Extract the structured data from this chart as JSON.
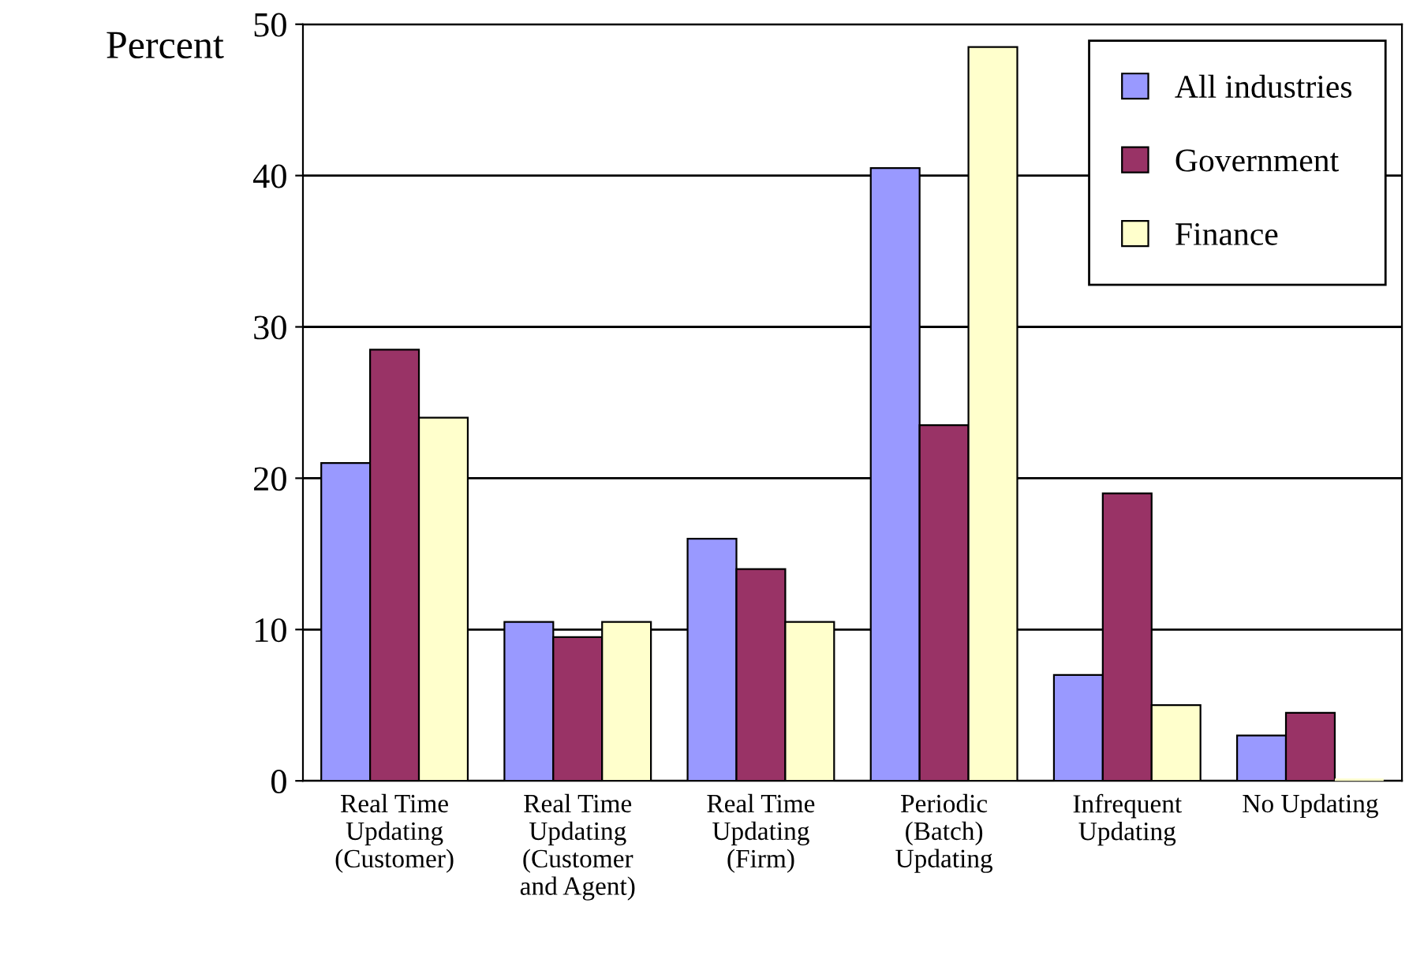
{
  "chart_data": {
    "type": "bar",
    "ylabel": "Percent",
    "categories": [
      "Real Time\nUpdating\n(Customer)",
      "Real Time\nUpdating\n(Customer\nand Agent)",
      "Real Time\nUpdating\n(Firm)",
      "Periodic\n(Batch)\nUpdating",
      "Infrequent\nUpdating",
      "No Updating"
    ],
    "series": [
      {
        "name": "All industries",
        "color": "#9999ff",
        "values": [
          21,
          10.5,
          16,
          40.5,
          7,
          3
        ]
      },
      {
        "name": "Government",
        "color": "#993366",
        "values": [
          28.5,
          9.5,
          14,
          23.5,
          19,
          4.5
        ]
      },
      {
        "name": "Finance",
        "color": "#ffffcc",
        "values": [
          24,
          10.5,
          10.5,
          48.5,
          5,
          0
        ]
      }
    ],
    "ylim": [
      0,
      50
    ],
    "yticks": [
      0,
      10,
      20,
      30,
      40,
      50
    ],
    "grid": "y",
    "legend": "top right"
  }
}
